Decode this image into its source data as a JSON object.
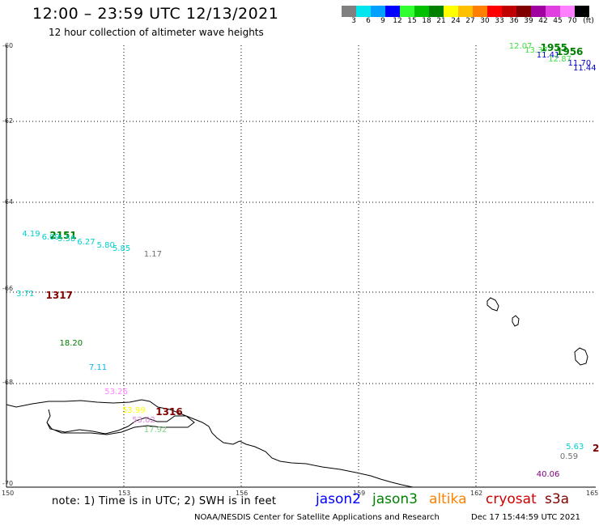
{
  "header": {
    "title": "12:00 – 23:59 UTC 12/13/2021",
    "subtitle": "12 hour collection of altimeter wave heights"
  },
  "colorbar": {
    "colors": [
      "#808080",
      "#00e5ee",
      "#00a0ff",
      "#0000ff",
      "#30ff30",
      "#00c000",
      "#008000",
      "#ffff00",
      "#ffc000",
      "#ff8000",
      "#ff0000",
      "#c00000",
      "#800000",
      "#a000a0",
      "#e040e0",
      "#ff80ff",
      "#000000"
    ],
    "labels": [
      "3",
      "6",
      "9",
      "12",
      "15",
      "18",
      "21",
      "24",
      "27",
      "30",
      "33",
      "36",
      "39",
      "42",
      "45",
      "70"
    ],
    "unit": "(ft)"
  },
  "axes": {
    "y_labels": [
      "-60",
      "-62",
      "-64",
      "-66",
      "-68",
      "-70"
    ],
    "x_labels": [
      "150",
      "153",
      "156",
      "159",
      "162",
      "165"
    ]
  },
  "observations": [
    {
      "text": "12.07",
      "color": "#40e040",
      "lon": 162.8,
      "lat": -60.03
    },
    {
      "text": "1955",
      "color": "#008000",
      "pass": true,
      "lon": 163.6,
      "lat": -60.03
    },
    {
      "text": "13.37",
      "color": "#40e040",
      "lon": 163.2,
      "lat": -60.13
    },
    {
      "text": "1956",
      "color": "#008000",
      "pass": true,
      "lon": 164.0,
      "lat": -60.12
    },
    {
      "text": "11.41",
      "color": "#0000cd",
      "lon": 163.5,
      "lat": -60.23
    },
    {
      "text": "12.87",
      "color": "#40e040",
      "lon": 163.8,
      "lat": -60.33
    },
    {
      "text": "11.70",
      "color": "#0000cd",
      "lon": 164.3,
      "lat": -60.43
    },
    {
      "text": "11.44",
      "color": "#0000cd",
      "lon": 164.7,
      "lat": -60.53
    },
    {
      "text": "4.19",
      "color": "#00d0d0",
      "lon": 150.4,
      "lat": -64.28
    },
    {
      "text": "2151",
      "color": "#008000",
      "pass": true,
      "lon": 151.1,
      "lat": -64.28
    },
    {
      "text": "6.09",
      "color": "#00d0d0",
      "lon": 150.9,
      "lat": -64.35
    },
    {
      "text": "5.58",
      "color": "#00d0d0",
      "lon": 151.3,
      "lat": -64.4
    },
    {
      "text": "6.27",
      "color": "#00d0d0",
      "lon": 151.8,
      "lat": -64.47
    },
    {
      "text": "5.80",
      "color": "#00d0d0",
      "lon": 152.3,
      "lat": -64.55
    },
    {
      "text": "5.85",
      "color": "#00d0d0",
      "lon": 152.7,
      "lat": -64.62
    },
    {
      "text": "1.17",
      "color": "#707070",
      "lon": 153.5,
      "lat": -64.75
    },
    {
      "text": "3.71",
      "color": "#00d0d0",
      "lon": 150.25,
      "lat": -65.65
    },
    {
      "text": "1317",
      "color": "#800000",
      "pass": true,
      "lon": 151.0,
      "lat": -65.65
    },
    {
      "text": "18.20",
      "color": "#008000",
      "lon": 151.35,
      "lat": -66.75
    },
    {
      "text": "7.11",
      "color": "#00b8f0",
      "lon": 152.1,
      "lat": -67.3
    },
    {
      "text": "53.26",
      "color": "#ff80ff",
      "lon": 152.5,
      "lat": -67.85
    },
    {
      "text": "53.99",
      "color": "#ffff00",
      "lon": 152.95,
      "lat": -68.28
    },
    {
      "text": "1316",
      "color": "#800000",
      "pass": true,
      "lon": 153.8,
      "lat": -68.28
    },
    {
      "text": "53.02",
      "color": "#e080e0",
      "lon": 153.2,
      "lat": -68.5
    },
    {
      "text": "17.92",
      "color": "#80d080",
      "lon": 153.5,
      "lat": -68.72
    },
    {
      "text": "5.63",
      "color": "#00d0d0",
      "lon": 164.25,
      "lat": -69.1
    },
    {
      "text": "2",
      "color": "#800000",
      "pass": true,
      "lon": 164.95,
      "lat": -69.1
    },
    {
      "text": "0.59",
      "color": "#707070",
      "lon": 164.1,
      "lat": -69.32
    },
    {
      "text": "40.06",
      "color": "#800080",
      "lon": 163.5,
      "lat": -69.72
    }
  ],
  "footer": {
    "note": "note: 1) Time is in UTC; 2) SWH is in feet",
    "credit": "NOAA/NESDIS Center for Satellite Applications and Research",
    "timestamp": "Dec 17 15:44:59 UTC 2021"
  },
  "legend": [
    {
      "label": "jason2",
      "color": "#0000ff"
    },
    {
      "label": "jason3",
      "color": "#008000"
    },
    {
      "label": "altika",
      "color": "#ff8000"
    },
    {
      "label": "cryosat",
      "color": "#d00000"
    },
    {
      "label": "s3a",
      "color": "#800000"
    }
  ]
}
